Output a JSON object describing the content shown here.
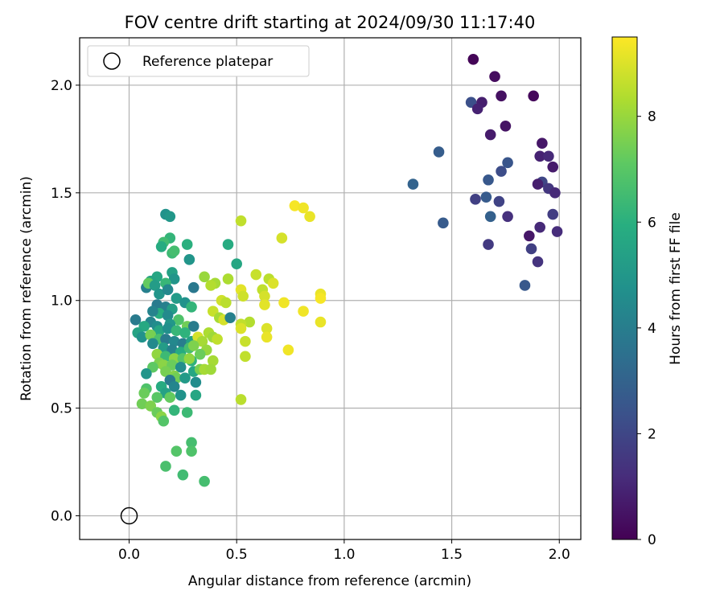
{
  "chart_data": {
    "type": "scatter",
    "title": "FOV centre drift starting at 2024/09/30 11:17:40",
    "xlabel": "Angular distance from reference (arcmin)",
    "ylabel": "Rotation from reference (arcmin)",
    "xlim": [
      -0.23,
      2.1
    ],
    "ylim": [
      -0.11,
      2.22
    ],
    "x_ticks": [
      "0.0",
      "0.5",
      "1.0",
      "1.5",
      "2.0"
    ],
    "y_ticks": [
      "0.0",
      "0.5",
      "1.0",
      "1.5",
      "2.0"
    ],
    "grid": true,
    "legend": {
      "position": "top-left",
      "entries": [
        "Reference platepar"
      ]
    },
    "colorbar": {
      "label": "Hours from first FF file",
      "range": [
        0,
        9.5
      ],
      "ticks": [
        "0",
        "2",
        "4",
        "6",
        "8"
      ],
      "colormap": "viridis"
    },
    "reference_point": {
      "x": 0.0,
      "y": 0.0,
      "label": "Reference platepar"
    },
    "points": [
      [
        1.6,
        2.12,
        0.1
      ],
      [
        1.7,
        2.04,
        0.3
      ],
      [
        1.88,
        1.95,
        0.2
      ],
      [
        1.73,
        1.95,
        0.4
      ],
      [
        1.59,
        1.92,
        2.3
      ],
      [
        1.64,
        1.92,
        0.8
      ],
      [
        1.62,
        1.89,
        0.9
      ],
      [
        1.75,
        1.81,
        0.5
      ],
      [
        1.68,
        1.77,
        0.7
      ],
      [
        1.92,
        1.73,
        0.6
      ],
      [
        1.44,
        1.69,
        2.8
      ],
      [
        1.91,
        1.67,
        0.9
      ],
      [
        1.95,
        1.67,
        1.1
      ],
      [
        1.76,
        1.64,
        2.5
      ],
      [
        1.97,
        1.62,
        0.7
      ],
      [
        1.73,
        1.6,
        2.2
      ],
      [
        1.67,
        1.56,
        2.6
      ],
      [
        1.92,
        1.55,
        2.0
      ],
      [
        1.9,
        1.54,
        0.8
      ],
      [
        1.95,
        1.52,
        1.5
      ],
      [
        1.32,
        1.54,
        3.0
      ],
      [
        1.98,
        1.5,
        1.1
      ],
      [
        1.66,
        1.48,
        2.7
      ],
      [
        1.61,
        1.47,
        1.8
      ],
      [
        1.72,
        1.46,
        1.9
      ],
      [
        1.68,
        1.39,
        2.9
      ],
      [
        1.76,
        1.39,
        1.3
      ],
      [
        1.97,
        1.4,
        1.7
      ],
      [
        1.46,
        1.36,
        2.7
      ],
      [
        1.91,
        1.34,
        1.1
      ],
      [
        1.99,
        1.32,
        1.2
      ],
      [
        1.86,
        1.3,
        0.6
      ],
      [
        1.67,
        1.26,
        1.6
      ],
      [
        1.87,
        1.24,
        1.8
      ],
      [
        1.9,
        1.18,
        1.4
      ],
      [
        1.84,
        1.07,
        2.6
      ],
      [
        0.17,
        1.4,
        4.8
      ],
      [
        0.19,
        1.39,
        5.0
      ],
      [
        0.19,
        1.29,
        6.2
      ],
      [
        0.16,
        1.27,
        6.5
      ],
      [
        0.15,
        1.25,
        5.8
      ],
      [
        0.27,
        1.26,
        6.0
      ],
      [
        0.46,
        1.26,
        5.8
      ],
      [
        0.2,
        1.22,
        6.4
      ],
      [
        0.21,
        1.23,
        6.6
      ],
      [
        0.2,
        1.13,
        5.4
      ],
      [
        0.13,
        1.11,
        5.6
      ],
      [
        0.21,
        1.1,
        4.9
      ],
      [
        0.5,
        1.17,
        5.6
      ],
      [
        0.28,
        1.19,
        4.9
      ],
      [
        0.3,
        1.06,
        3.8
      ],
      [
        0.1,
        1.09,
        5.5
      ],
      [
        0.08,
        1.06,
        4.1
      ],
      [
        0.09,
        1.08,
        7.2
      ],
      [
        0.17,
        1.08,
        6.3
      ],
      [
        0.12,
        1.07,
        5.2
      ],
      [
        0.14,
        1.03,
        4.9
      ],
      [
        0.18,
        1.05,
        4.4
      ],
      [
        0.22,
        1.01,
        5.1
      ],
      [
        0.26,
        0.99,
        4.8
      ],
      [
        0.13,
        0.98,
        3.9
      ],
      [
        0.17,
        0.97,
        4.1
      ],
      [
        0.2,
        0.96,
        5.3
      ],
      [
        0.29,
        0.97,
        6.2
      ],
      [
        0.14,
        0.94,
        5.9
      ],
      [
        0.11,
        0.95,
        4.2
      ],
      [
        0.18,
        0.93,
        4.5
      ],
      [
        0.23,
        0.91,
        6.8
      ],
      [
        0.1,
        0.9,
        4.3
      ],
      [
        0.03,
        0.91,
        3.9
      ],
      [
        0.07,
        0.88,
        5.7
      ],
      [
        0.13,
        0.88,
        4.6
      ],
      [
        0.19,
        0.89,
        5.0
      ],
      [
        0.27,
        0.88,
        7.4
      ],
      [
        0.3,
        0.88,
        3.9
      ],
      [
        0.14,
        0.86,
        5.6
      ],
      [
        0.18,
        0.87,
        4.7
      ],
      [
        0.22,
        0.86,
        6.3
      ],
      [
        0.26,
        0.85,
        6.1
      ],
      [
        0.04,
        0.85,
        5.5
      ],
      [
        0.06,
        0.83,
        4.8
      ],
      [
        0.1,
        0.84,
        7.5
      ],
      [
        0.14,
        0.82,
        6.7
      ],
      [
        0.17,
        0.82,
        3.9
      ],
      [
        0.21,
        0.81,
        4.4
      ],
      [
        0.25,
        0.8,
        4.0
      ],
      [
        0.29,
        0.81,
        5.4
      ],
      [
        0.11,
        0.8,
        4.5
      ],
      [
        0.16,
        0.78,
        5.2
      ],
      [
        0.2,
        0.77,
        4.2
      ],
      [
        0.24,
        0.76,
        5.8
      ],
      [
        0.28,
        0.78,
        6.6
      ],
      [
        0.13,
        0.75,
        7.9
      ],
      [
        0.17,
        0.74,
        6.4
      ],
      [
        0.21,
        0.73,
        7.8
      ],
      [
        0.25,
        0.73,
        6.9
      ],
      [
        0.29,
        0.72,
        6.1
      ],
      [
        0.14,
        0.71,
        7.6
      ],
      [
        0.16,
        0.7,
        7.8
      ],
      [
        0.2,
        0.7,
        7.3
      ],
      [
        0.24,
        0.69,
        4.6
      ],
      [
        0.3,
        0.67,
        5.6
      ],
      [
        0.11,
        0.69,
        7.1
      ],
      [
        0.08,
        0.66,
        4.9
      ],
      [
        0.17,
        0.67,
        7.5
      ],
      [
        0.21,
        0.65,
        7.7
      ],
      [
        0.22,
        0.64,
        7.4
      ],
      [
        0.19,
        0.63,
        3.9
      ],
      [
        0.26,
        0.64,
        5.1
      ],
      [
        0.31,
        0.62,
        4.6
      ],
      [
        0.08,
        0.59,
        6.8
      ],
      [
        0.15,
        0.6,
        5.8
      ],
      [
        0.21,
        0.6,
        4.3
      ],
      [
        0.07,
        0.57,
        7.3
      ],
      [
        0.17,
        0.57,
        5.4
      ],
      [
        0.24,
        0.56,
        4.8
      ],
      [
        0.31,
        0.56,
        5.6
      ],
      [
        0.13,
        0.55,
        7.0
      ],
      [
        0.19,
        0.55,
        7.2
      ],
      [
        0.06,
        0.52,
        7.4
      ],
      [
        0.1,
        0.51,
        7.6
      ],
      [
        0.13,
        0.48,
        7.3
      ],
      [
        0.21,
        0.49,
        6.2
      ],
      [
        0.15,
        0.46,
        7.8
      ],
      [
        0.16,
        0.44,
        6.9
      ],
      [
        0.27,
        0.48,
        6.4
      ],
      [
        0.29,
        0.34,
        6.6
      ],
      [
        0.29,
        0.3,
        6.8
      ],
      [
        0.22,
        0.3,
        6.9
      ],
      [
        0.17,
        0.23,
        6.7
      ],
      [
        0.25,
        0.19,
        6.5
      ],
      [
        0.35,
        0.16,
        6.6
      ],
      [
        0.52,
        1.37,
        8.6
      ],
      [
        0.77,
        1.44,
        9.4
      ],
      [
        0.81,
        1.43,
        9.3
      ],
      [
        0.84,
        1.39,
        9.2
      ],
      [
        0.71,
        1.29,
        8.9
      ],
      [
        0.35,
        1.11,
        8.0
      ],
      [
        0.4,
        1.08,
        8.2
      ],
      [
        0.46,
        1.1,
        8.3
      ],
      [
        0.59,
        1.12,
        8.7
      ],
      [
        0.65,
        1.1,
        8.5
      ],
      [
        0.67,
        1.08,
        9.0
      ],
      [
        0.38,
        1.07,
        8.4
      ],
      [
        0.52,
        1.05,
        9.1
      ],
      [
        0.53,
        1.02,
        8.8
      ],
      [
        0.62,
        1.05,
        8.6
      ],
      [
        0.63,
        1.02,
        8.9
      ],
      [
        0.89,
        1.03,
        9.2
      ],
      [
        0.89,
        1.01,
        9.4
      ],
      [
        0.43,
        1.0,
        8.8
      ],
      [
        0.45,
        0.99,
        8.5
      ],
      [
        0.63,
        0.98,
        9.1
      ],
      [
        0.72,
        0.99,
        9.3
      ],
      [
        0.39,
        0.95,
        8.7
      ],
      [
        0.42,
        0.92,
        8.2
      ],
      [
        0.44,
        0.91,
        8.9
      ],
      [
        0.47,
        0.92,
        4.1
      ],
      [
        0.81,
        0.95,
        9.3
      ],
      [
        0.56,
        0.9,
        8.4
      ],
      [
        0.52,
        0.89,
        8.6
      ],
      [
        0.52,
        0.87,
        9.0
      ],
      [
        0.64,
        0.87,
        9.0
      ],
      [
        0.89,
        0.9,
        9.2
      ],
      [
        0.37,
        0.85,
        8.3
      ],
      [
        0.39,
        0.83,
        8.1
      ],
      [
        0.41,
        0.82,
        8.6
      ],
      [
        0.32,
        0.83,
        8.9
      ],
      [
        0.34,
        0.81,
        8.2
      ],
      [
        0.64,
        0.83,
        9.2
      ],
      [
        0.54,
        0.81,
        8.7
      ],
      [
        0.36,
        0.77,
        8.0
      ],
      [
        0.54,
        0.74,
        8.6
      ],
      [
        0.74,
        0.77,
        9.3
      ],
      [
        0.39,
        0.72,
        8.2
      ],
      [
        0.33,
        0.68,
        7.5
      ],
      [
        0.35,
        0.68,
        8.2
      ],
      [
        0.38,
        0.68,
        8.1
      ],
      [
        0.52,
        0.54,
        8.5
      ],
      [
        0.28,
        0.73,
        7.9
      ],
      [
        0.3,
        0.79,
        7.6
      ],
      [
        0.33,
        0.75,
        7.3
      ]
    ]
  }
}
